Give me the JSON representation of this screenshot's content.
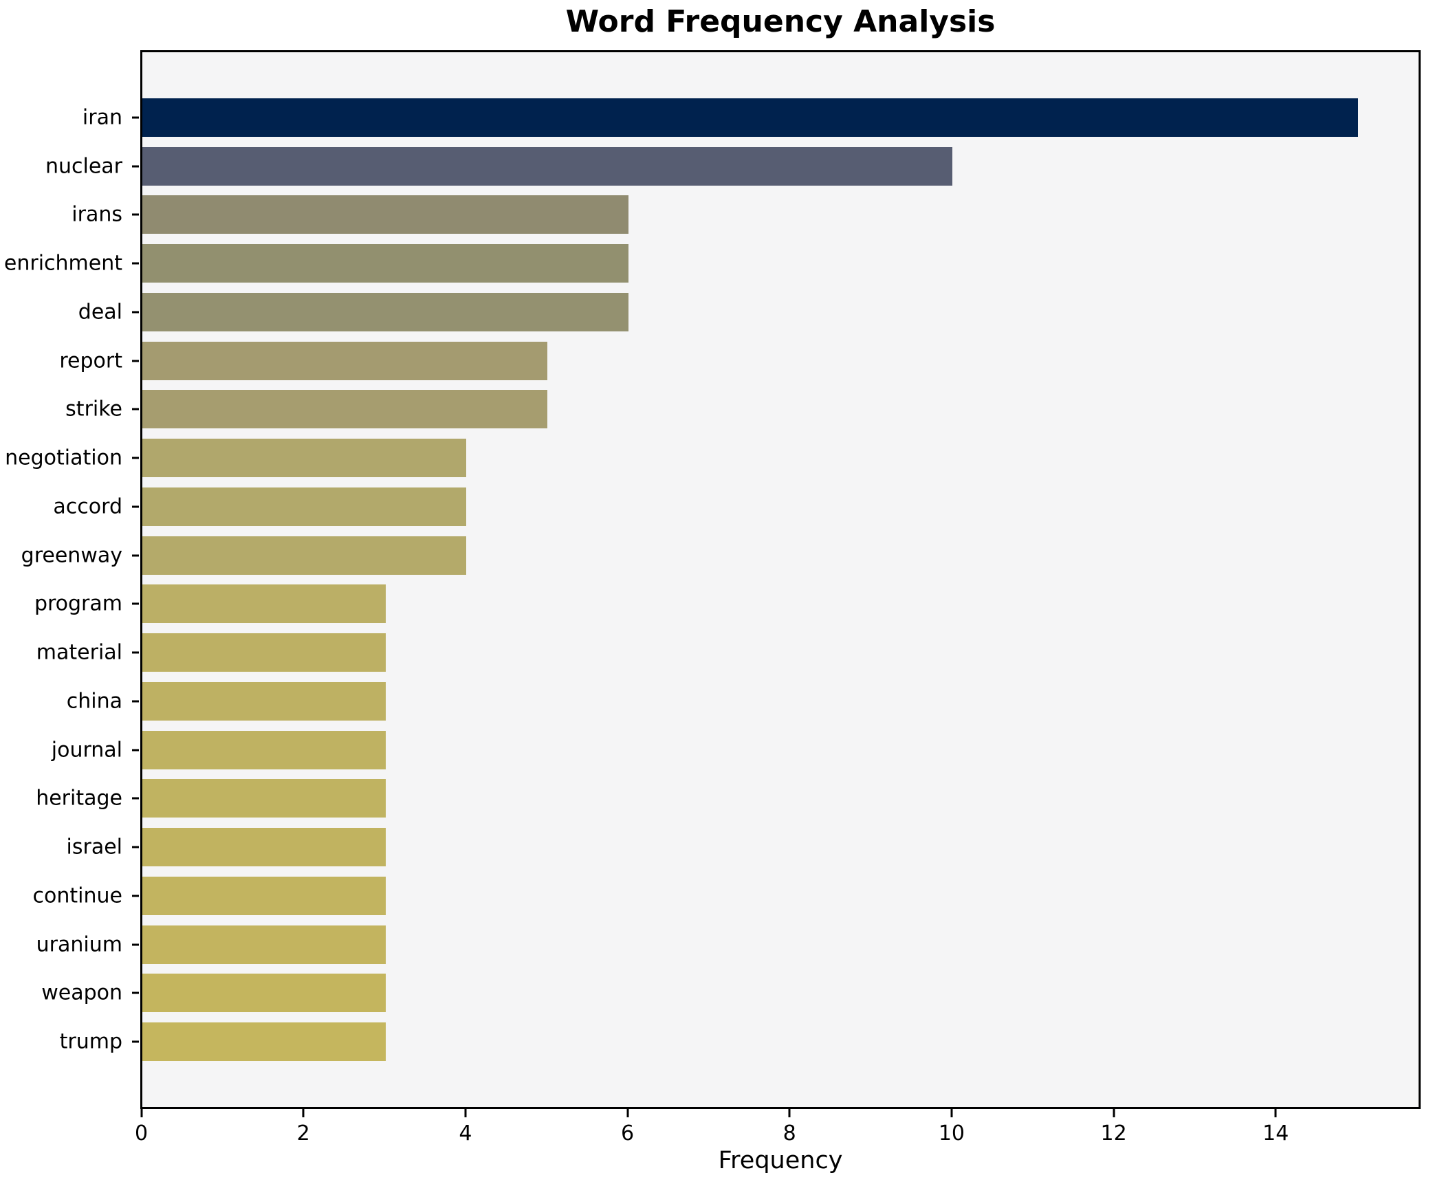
{
  "title": "Word Frequency Analysis",
  "chart_data": {
    "type": "bar",
    "orientation": "horizontal",
    "title": "Word Frequency Analysis",
    "xlabel": "Frequency",
    "ylabel": "",
    "categories": [
      "iran",
      "nuclear",
      "irans",
      "enrichment",
      "deal",
      "report",
      "strike",
      "negotiation",
      "accord",
      "greenway",
      "program",
      "material",
      "china",
      "journal",
      "heritage",
      "israel",
      "continue",
      "uranium",
      "weapon",
      "trump"
    ],
    "values": [
      15,
      10,
      6,
      6,
      6,
      5,
      5,
      4,
      4,
      4,
      3,
      3,
      3,
      3,
      3,
      3,
      3,
      3,
      3,
      3
    ],
    "bar_colors": [
      "#00224e",
      "#575d72",
      "#908b70",
      "#92906f",
      "#949170",
      "#a49b70",
      "#a69d6f",
      "#b0a76c",
      "#b2a96b",
      "#b4aa6a",
      "#bbaf66",
      "#bdb064",
      "#beb163",
      "#bfb262",
      "#c0b361",
      "#c1b360",
      "#c2b460",
      "#c3b45f",
      "#c4b55e",
      "#c5b65e"
    ],
    "xlim": [
      0,
      15.75
    ],
    "xticks": [
      0,
      2,
      4,
      6,
      8,
      10,
      12,
      14
    ],
    "xtick_labels": [
      "0",
      "2",
      "4",
      "6",
      "8",
      "10",
      "12",
      "14"
    ],
    "grid": false,
    "legend": null,
    "plot_background": "#f5f5f6",
    "figure_background": "#ffffff",
    "spine_color": "#000000",
    "text_color": "#000000"
  }
}
